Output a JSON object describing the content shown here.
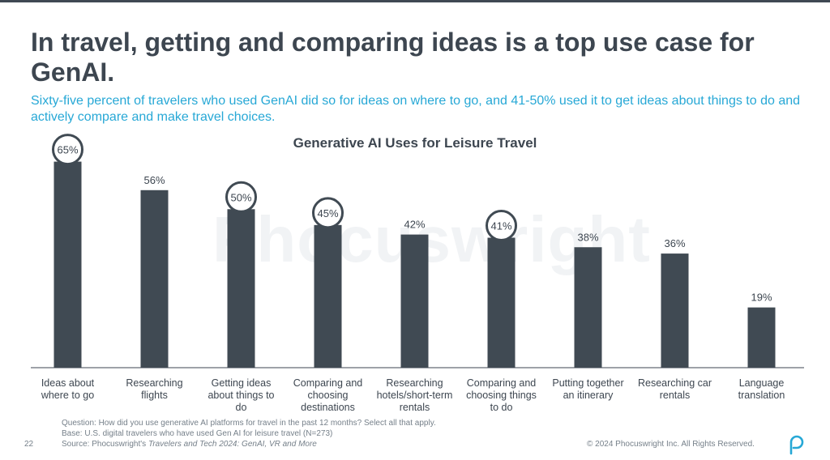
{
  "headline": "In travel, getting and comparing ideas is a top use case for GenAI.",
  "subhead": "Sixty-five percent of travelers who used GenAI did so for ideas on where to go, and 41-50% used it to get ideas about things to do and actively compare and make travel choices.",
  "watermark": "Phocuswright",
  "chart_data": {
    "type": "bar",
    "title": "Generative AI Uses for Leisure Travel",
    "categories": [
      "Ideas about where to go",
      "Researching flights",
      "Getting ideas about things to do",
      "Comparing and choosing destinations",
      "Researching hotels/short-term rentals",
      "Comparing and choosing things to do",
      "Putting together an itinerary",
      "Researching car rentals",
      "Language translation"
    ],
    "category_lines": [
      [
        "Ideas about",
        "where to go"
      ],
      [
        "Researching",
        "flights"
      ],
      [
        "Getting ideas",
        "about things to",
        "do"
      ],
      [
        "Comparing and",
        "choosing",
        "destinations"
      ],
      [
        "Researching",
        "hotels/short-term",
        "rentals"
      ],
      [
        "Comparing and",
        "choosing things",
        "to do"
      ],
      [
        "Putting together",
        "an itinerary"
      ],
      [
        "Researching car",
        "rentals"
      ],
      [
        "Language",
        "translation"
      ]
    ],
    "values": [
      65,
      56,
      50,
      45,
      42,
      41,
      38,
      36,
      19
    ],
    "data_labels": [
      "65%",
      "56%",
      "50%",
      "45%",
      "42%",
      "41%",
      "38%",
      "36%",
      "19%"
    ],
    "highlighted": [
      true,
      false,
      true,
      true,
      false,
      true,
      false,
      false,
      false
    ],
    "ylim": [
      0,
      70
    ],
    "grid": false,
    "legend": "none",
    "colors": {
      "bar": "#404a53",
      "highlight_ring": "#404a53",
      "label": "#3d4650"
    }
  },
  "footnote": {
    "question": "Question: How did you use generative AI platforms for travel in the past 12 months? Select all that apply.",
    "base": "Base: U.S. digital travelers who have used Gen AI for leisure travel (N=273)",
    "source_prefix": "Source: Phocuswright's ",
    "source_title": "Travelers and Tech 2024: GenAI, VR and More"
  },
  "page_number": "22",
  "copyright": "© 2024 Phocuswright Inc. All Rights Reserved.",
  "logo_icon": "phocuswright-p-logo-icon",
  "accent_color": "#27a8d6"
}
